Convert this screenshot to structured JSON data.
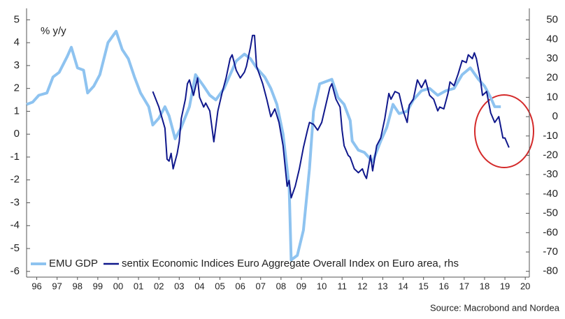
{
  "chart_data": {
    "type": "line",
    "ylabel": "% y/y",
    "source": "Source: Macrobond and Nordea",
    "xlim": [
      1996,
      2020.7
    ],
    "ylim": [
      -6.25,
      5.5
    ],
    "y2lim": [
      -83,
      56
    ],
    "yticks": [
      5,
      4,
      3,
      2,
      1,
      0,
      -1,
      -2,
      -3,
      -4,
      -5,
      -6
    ],
    "y2ticks": [
      50,
      40,
      30,
      20,
      10,
      0,
      -10,
      -20,
      -30,
      -40,
      -50,
      -60,
      -70,
      -80
    ],
    "xticks": [
      {
        "value": 1996.5,
        "label": "96"
      },
      {
        "value": 1997.5,
        "label": "97"
      },
      {
        "value": 1998.5,
        "label": "98"
      },
      {
        "value": 1999.5,
        "label": "99"
      },
      {
        "value": 2000.5,
        "label": "00"
      },
      {
        "value": 2001.5,
        "label": "01"
      },
      {
        "value": 2002.5,
        "label": "02"
      },
      {
        "value": 2003.5,
        "label": "03"
      },
      {
        "value": 2004.5,
        "label": "04"
      },
      {
        "value": 2005.5,
        "label": "05"
      },
      {
        "value": 2006.5,
        "label": "06"
      },
      {
        "value": 2007.5,
        "label": "07"
      },
      {
        "value": 2008.5,
        "label": "08"
      },
      {
        "value": 2009.5,
        "label": "09"
      },
      {
        "value": 2010.5,
        "label": "10"
      },
      {
        "value": 2011.5,
        "label": "11"
      },
      {
        "value": 2012.5,
        "label": "12"
      },
      {
        "value": 2013.5,
        "label": "13"
      },
      {
        "value": 2014.5,
        "label": "14"
      },
      {
        "value": 2015.5,
        "label": "15"
      },
      {
        "value": 2016.5,
        "label": "16"
      },
      {
        "value": 2017.5,
        "label": "17"
      },
      {
        "value": 2018.5,
        "label": "18"
      },
      {
        "value": 2019.5,
        "label": "19"
      },
      {
        "value": 2020.5,
        "label": "20"
      }
    ],
    "series": [
      {
        "name": "EMU GDP",
        "color": "#8ec3f0",
        "axis": "y",
        "x": [
          1996.0,
          1996.3,
          1996.6,
          1997.0,
          1997.3,
          1997.6,
          1998.0,
          1998.2,
          1998.5,
          1998.8,
          1999.0,
          1999.3,
          1999.6,
          2000.0,
          2000.4,
          2000.7,
          2001.0,
          2001.3,
          2001.6,
          2002.0,
          2002.2,
          2002.5,
          2002.8,
          2003.0,
          2003.3,
          2003.6,
          2004.0,
          2004.3,
          2004.7,
          2005.0,
          2005.3,
          2005.7,
          2006.0,
          2006.3,
          2006.7,
          2007.0,
          2007.3,
          2007.7,
          2008.0,
          2008.3,
          2008.6,
          2008.9,
          2009.0,
          2009.3,
          2009.6,
          2009.9,
          2010.1,
          2010.4,
          2010.7,
          2011.0,
          2011.3,
          2011.6,
          2011.9,
          2012.0,
          2012.3,
          2012.6,
          2013.0,
          2013.4,
          2013.7,
          2014.0,
          2014.3,
          2014.7,
          2015.0,
          2015.4,
          2015.8,
          2016.2,
          2016.6,
          2017.0,
          2017.4,
          2017.8,
          2018.2,
          2018.5,
          2018.8,
          2019.0,
          2019.3
        ],
        "values": [
          1.3,
          1.4,
          1.7,
          1.8,
          2.5,
          2.7,
          3.4,
          3.8,
          2.9,
          2.8,
          1.8,
          2.1,
          2.6,
          4.0,
          4.5,
          3.7,
          3.3,
          2.5,
          1.8,
          1.2,
          0.4,
          0.7,
          1.2,
          0.8,
          -0.2,
          0.3,
          1.2,
          2.6,
          2.1,
          1.7,
          1.5,
          2.0,
          2.6,
          3.2,
          3.5,
          3.3,
          2.9,
          2.5,
          2.0,
          1.3,
          0.0,
          -2.3,
          -5.5,
          -5.3,
          -4.2,
          -1.5,
          1.0,
          2.2,
          2.3,
          2.4,
          1.6,
          1.3,
          0.6,
          -0.3,
          -0.7,
          -0.8,
          -1.2,
          -0.3,
          0.3,
          1.3,
          0.9,
          1.0,
          1.5,
          1.9,
          2.0,
          1.7,
          1.9,
          2.0,
          2.6,
          2.9,
          2.4,
          2.1,
          1.6,
          1.2,
          1.2
        ]
      },
      {
        "name": "sentix Economic Indices Euro Aggregate  Overall Index on Euro area, rhs",
        "color": "#10188c",
        "axis": "y2",
        "x": [
          2002.2,
          2002.5,
          2002.8,
          2002.9,
          2003.0,
          2003.1,
          2003.2,
          2003.4,
          2003.5,
          2003.6,
          2003.8,
          2003.9,
          2004.0,
          2004.2,
          2004.4,
          2004.5,
          2004.7,
          2004.8,
          2005.0,
          2005.2,
          2005.4,
          2005.6,
          2005.8,
          2006.0,
          2006.1,
          2006.3,
          2006.5,
          2006.7,
          2006.8,
          2007.0,
          2007.1,
          2007.2,
          2007.3,
          2007.5,
          2007.6,
          2007.8,
          2008.0,
          2008.2,
          2008.4,
          2008.6,
          2008.8,
          2008.9,
          2009.0,
          2009.2,
          2009.4,
          2009.6,
          2009.8,
          2009.9,
          2010.1,
          2010.3,
          2010.5,
          2010.7,
          2010.9,
          2011.0,
          2011.2,
          2011.4,
          2011.5,
          2011.6,
          2011.8,
          2011.9,
          2012.1,
          2012.3,
          2012.5,
          2012.6,
          2012.7,
          2012.9,
          2013.0,
          2013.2,
          2013.4,
          2013.6,
          2013.8,
          2013.9,
          2014.1,
          2014.3,
          2014.5,
          2014.7,
          2014.8,
          2015.0,
          2015.2,
          2015.4,
          2015.6,
          2015.8,
          2016.0,
          2016.2,
          2016.3,
          2016.5,
          2016.7,
          2016.8,
          2017.0,
          2017.2,
          2017.4,
          2017.6,
          2017.7,
          2017.9,
          2018.0,
          2018.1,
          2018.3,
          2018.4,
          2018.6,
          2018.8,
          2019.0,
          2019.2,
          2019.4,
          2019.5,
          2019.7
        ],
        "values": [
          13,
          5,
          -6,
          -22,
          -23,
          -19,
          -27,
          -19,
          -13,
          -1,
          9,
          17,
          19,
          11,
          20,
          10,
          5,
          7,
          3,
          -13,
          3,
          12,
          20,
          30,
          32,
          24,
          20,
          23,
          26,
          36,
          42,
          42,
          26,
          20,
          17,
          9,
          0,
          4,
          -3,
          -15,
          -36,
          -33,
          -42,
          -36,
          -27,
          -16,
          -7,
          -3,
          -4,
          -7,
          -3,
          6,
          15,
          17,
          9,
          5,
          -7,
          -15,
          -20,
          -21,
          -27,
          -29,
          -27,
          -30,
          -32,
          -20,
          -28,
          -15,
          -11,
          -1,
          12,
          9,
          13,
          12,
          3,
          -3,
          6,
          9,
          19,
          15,
          19,
          11,
          9,
          3,
          5,
          4,
          12,
          18,
          16,
          22,
          29,
          28,
          32,
          30,
          33,
          30,
          19,
          11,
          13,
          2,
          -3,
          0,
          -11,
          -11,
          -16
        ]
      }
    ]
  }
}
